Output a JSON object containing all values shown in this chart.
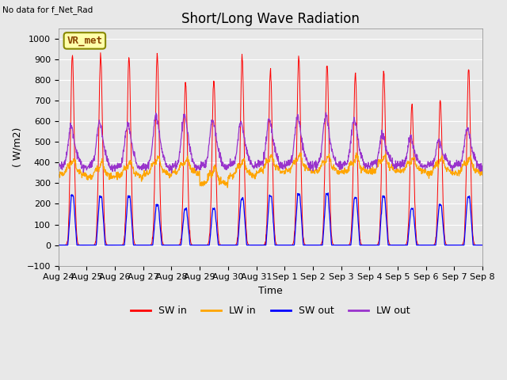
{
  "title": "Short/Long Wave Radiation",
  "xlabel": "Time",
  "ylabel": "( W/m2)",
  "ylim": [
    -100,
    1050
  ],
  "yticks": [
    -100,
    0,
    100,
    200,
    300,
    400,
    500,
    600,
    700,
    800,
    900,
    1000
  ],
  "xlabels": [
    "Aug 24",
    "Aug 25",
    "Aug 26",
    "Aug 27",
    "Aug 28",
    "Aug 29",
    "Aug 30",
    "Aug 31",
    "Sep 1",
    "Sep 2",
    "Sep 3",
    "Sep 4",
    "Sep 5",
    "Sep 6",
    "Sep 7",
    "Sep 8"
  ],
  "top_left_text": "No data for f_Net_Rad",
  "box_label": "VR_met",
  "legend": [
    "SW in",
    "LW in",
    "SW out",
    "LW out"
  ],
  "legend_colors": [
    "#ff0000",
    "#ffa500",
    "#0000ff",
    "#9933cc"
  ],
  "sw_in_peaks": [
    920,
    925,
    915,
    925,
    795,
    800,
    910,
    845,
    915,
    875,
    830,
    840,
    680,
    700,
    860
  ],
  "sw_out_peaks": [
    240,
    235,
    235,
    195,
    175,
    175,
    225,
    240,
    245,
    245,
    230,
    235,
    175,
    195,
    235
  ],
  "lw_in_base": [
    340,
    330,
    330,
    345,
    350,
    295,
    335,
    355,
    360,
    355,
    355,
    360,
    355,
    350,
    350
  ],
  "lw_in_bump": [
    65,
    60,
    65,
    70,
    60,
    70,
    70,
    65,
    65,
    65,
    65,
    65,
    60,
    60,
    65
  ],
  "lw_out_base": [
    380,
    375,
    375,
    375,
    375,
    380,
    385,
    385,
    385,
    385,
    385,
    390,
    385,
    385,
    385
  ],
  "lw_out_bump": [
    185,
    210,
    200,
    245,
    240,
    215,
    200,
    210,
    225,
    230,
    215,
    135,
    125,
    110,
    170
  ],
  "background_color": "#e8e8e8",
  "fig_facecolor": "#e8e8e8",
  "grid_color": "#ffffff",
  "title_fontsize": 12,
  "label_fontsize": 9,
  "tick_fontsize": 8
}
